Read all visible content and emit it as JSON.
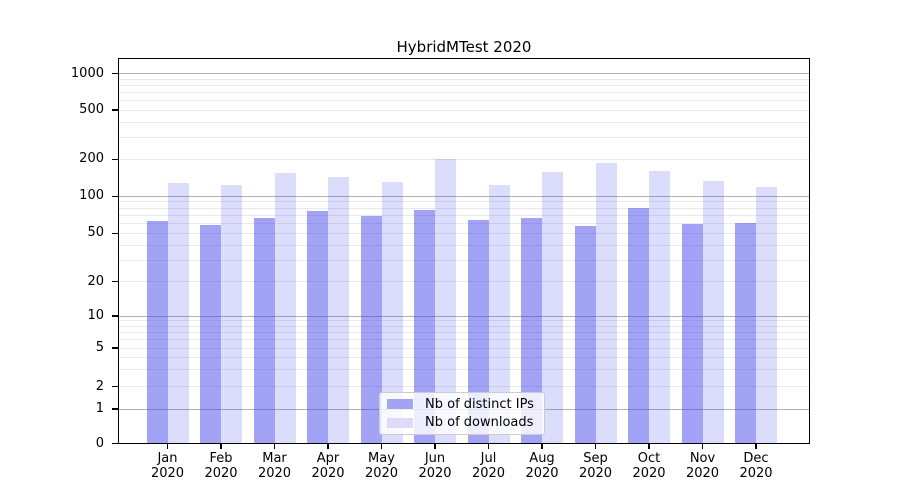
{
  "figure": {
    "title": "HybridMTest 2020"
  },
  "chart_data": {
    "type": "bar",
    "title": "HybridMTest 2020",
    "x": {
      "months": [
        "Jan",
        "Feb",
        "Mar",
        "Apr",
        "May",
        "Jun",
        "Jul",
        "Aug",
        "Sep",
        "Oct",
        "Nov",
        "Dec"
      ],
      "year": "2020"
    },
    "series": [
      {
        "name": "Nb of distinct IPs",
        "swatch_color": "#a3a3f4",
        "bar_color": "rgba(50,50,235,0.45)",
        "values": [
          63,
          58,
          67,
          76,
          69,
          78,
          64,
          66,
          57,
          81,
          60,
          61
        ]
      },
      {
        "name": "Nb of downloads",
        "swatch_color": "#dcdcfa",
        "bar_color": "rgba(50,50,235,0.17)",
        "values": [
          128,
          123,
          154,
          143,
          131,
          200,
          123,
          158,
          188,
          160,
          134,
          119
        ]
      }
    ],
    "yscale": "symlog",
    "yticks": [
      0,
      1,
      2,
      5,
      10,
      20,
      50,
      100,
      200,
      500,
      1000
    ],
    "ylim": [
      0,
      1250
    ],
    "grid": true,
    "legend_position": "lower center",
    "colors": {
      "major_grid": "#b2b2b2",
      "minor_grid": "#e9e9e9",
      "spine": "#000000"
    }
  }
}
